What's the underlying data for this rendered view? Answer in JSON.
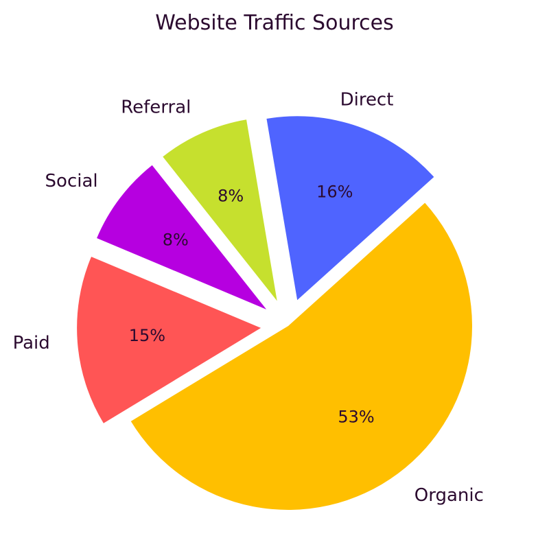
{
  "chart_data": {
    "type": "pie",
    "title": "Website Traffic Sources",
    "slices": [
      {
        "label": "Organic",
        "value": 53,
        "value_label": "53%",
        "color": "#FFBF00",
        "exploded": false
      },
      {
        "label": "Paid",
        "value": 15,
        "value_label": "15%",
        "color": "#FF5555",
        "exploded": true
      },
      {
        "label": "Social",
        "value": 8,
        "value_label": "8%",
        "color": "#B600E0",
        "exploded": true
      },
      {
        "label": "Referral",
        "value": 8,
        "value_label": "8%",
        "color": "#C6E02E",
        "exploded": true
      },
      {
        "label": "Direct",
        "value": 16,
        "value_label": "16%",
        "color": "#4F64FF",
        "exploded": true
      }
    ]
  }
}
